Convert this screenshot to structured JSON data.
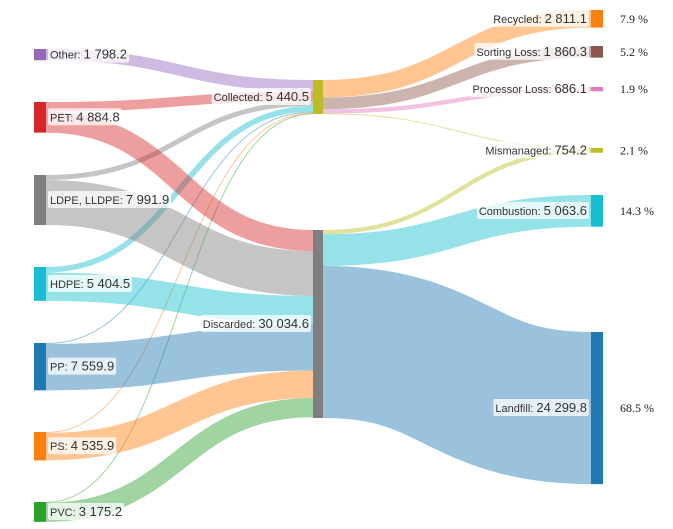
{
  "nodes": [
    {
      "id": "other",
      "name": "Other",
      "value": 1798.2,
      "value_text": "1 798.2",
      "color": "#9467bd"
    },
    {
      "id": "pet",
      "name": "PET",
      "value": 4884.8,
      "value_text": "4 884.8",
      "color": "#d62728"
    },
    {
      "id": "ldpe",
      "name": "LDPE, LLDPE",
      "value": 7991.9,
      "value_text": "7 991.9",
      "color": "#7f7f7f"
    },
    {
      "id": "hdpe",
      "name": "HDPE",
      "value": 5404.5,
      "value_text": "5 404.5",
      "color": "#17becf"
    },
    {
      "id": "pp",
      "name": "PP",
      "value": 7559.9,
      "value_text": "7 559.9",
      "color": "#1f77b4"
    },
    {
      "id": "ps",
      "name": "PS",
      "value": 4535.9,
      "value_text": "4 535.9",
      "color": "#ff7f0e"
    },
    {
      "id": "pvc",
      "name": "PVC",
      "value": 3175.2,
      "value_text": "3 175.2",
      "color": "#2ca02c"
    },
    {
      "id": "collected",
      "name": "Collected",
      "value": 5440.5,
      "value_text": "5 440.5",
      "color": "#bcbd22"
    },
    {
      "id": "discarded",
      "name": "Discarded",
      "value": 30034.6,
      "value_text": "30 034.6",
      "color": "#7f7f7f"
    },
    {
      "id": "recycled",
      "name": "Recycled",
      "value": 2811.1,
      "value_text": "2 811.1",
      "color": "#ff7f0e",
      "percent": "7.9 %"
    },
    {
      "id": "sorting",
      "name": "Sorting Loss",
      "value": 1860.3,
      "value_text": "1 860.3",
      "color": "#8c564b",
      "percent": "5.2 %"
    },
    {
      "id": "processor",
      "name": "Processor Loss",
      "value": 686.1,
      "value_text": "686.1",
      "color": "#e377c2",
      "percent": "1.9 %"
    },
    {
      "id": "mismanaged",
      "name": "Mismanaged",
      "value": 754.2,
      "value_text": "754.2",
      "color": "#bcbd22",
      "percent": "2.1 %"
    },
    {
      "id": "combustion",
      "name": "Combustion",
      "value": 5063.6,
      "value_text": "5 063.6",
      "color": "#17becf",
      "percent": "14.3 %"
    },
    {
      "id": "landfill",
      "name": "Landfill",
      "value": 24299.8,
      "value_text": "24 299.8",
      "color": "#1f77b4",
      "percent": "68.5 %"
    }
  ],
  "links": [
    {
      "source": "other",
      "target": "collected",
      "value": 1798.2
    },
    {
      "source": "pet",
      "target": "collected",
      "value": 1542.3
    },
    {
      "source": "ldpe",
      "target": "collected",
      "value": 800
    },
    {
      "source": "hdpe",
      "target": "collected",
      "value": 900
    },
    {
      "source": "pp",
      "target": "collected",
      "value": 150
    },
    {
      "source": "ps",
      "target": "collected",
      "value": 150
    },
    {
      "source": "pvc",
      "target": "collected",
      "value": 100
    },
    {
      "source": "pet",
      "target": "discarded",
      "value": 3342.5
    },
    {
      "source": "ldpe",
      "target": "discarded",
      "value": 7191.9
    },
    {
      "source": "hdpe",
      "target": "discarded",
      "value": 4504.5
    },
    {
      "source": "pp",
      "target": "discarded",
      "value": 7409.9
    },
    {
      "source": "ps",
      "target": "discarded",
      "value": 4385.9
    },
    {
      "source": "pvc",
      "target": "discarded",
      "value": 3075.2
    },
    {
      "source": "collected",
      "target": "recycled",
      "value": 2811.1
    },
    {
      "source": "collected",
      "target": "sorting",
      "value": 1860.3
    },
    {
      "source": "collected",
      "target": "processor",
      "value": 686.1
    },
    {
      "source": "collected",
      "target": "mismanaged",
      "value": 83
    },
    {
      "source": "discarded",
      "target": "mismanaged",
      "value": 671.2
    },
    {
      "source": "discarded",
      "target": "combustion",
      "value": 5063.6
    },
    {
      "source": "discarded",
      "target": "landfill",
      "value": 24299.8
    }
  ]
}
